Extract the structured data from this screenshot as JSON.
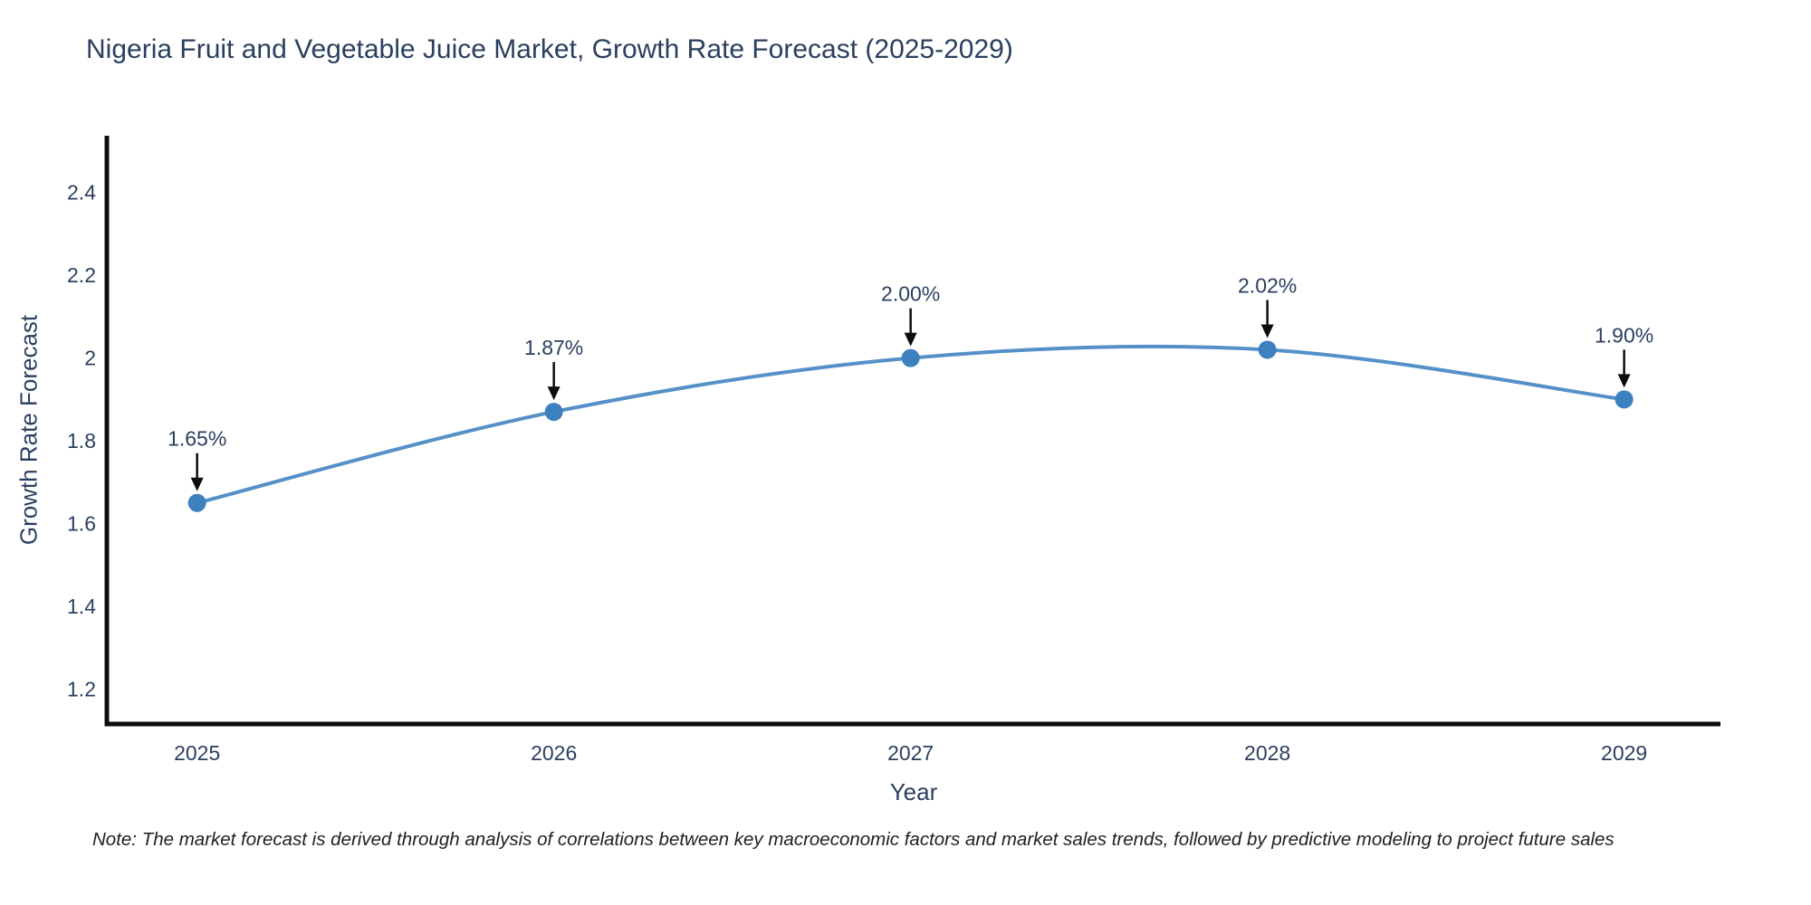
{
  "chart_data": {
    "type": "line",
    "title": "Nigeria Fruit and Vegetable Juice Market, Growth Rate Forecast (2025-2029)",
    "xlabel": "Year",
    "ylabel": "Growth Rate Forecast",
    "x": [
      2025,
      2026,
      2027,
      2028,
      2029
    ],
    "values": [
      1.65,
      1.87,
      2.0,
      2.02,
      1.9
    ],
    "point_labels": [
      "1.65%",
      "1.87%",
      "2.00%",
      "2.02%",
      "1.90%"
    ],
    "series_name": "Growth Rate Forecast",
    "x_tick_labels": [
      "2025",
      "2026",
      "2027",
      "2028",
      "2029"
    ],
    "y_ticks": [
      1.2,
      1.4,
      1.6,
      1.8,
      2.0,
      2.2,
      2.4
    ],
    "y_tick_labels": [
      "1.2",
      "1.4",
      "1.6",
      "1.8",
      "2",
      "2.2",
      "2.4"
    ],
    "xlim": [
      2024.747,
      2029.27
    ],
    "ylim": [
      1.116,
      2.537
    ],
    "line_shape": "spline",
    "grid": false,
    "legend_position": "none",
    "note": "Note: The market forecast is derived through analysis of correlations between key macroeconomic factors and market sales trends, followed by predictive modeling to project future sales",
    "colors": {
      "line": "#5590c8",
      "marker": "#3c80c0",
      "axis": "#0d0d0d",
      "tick_text": "#2a3f5f",
      "annotation_text": "#2a3f5f",
      "annotation_arrow": "#0d0d0d",
      "note_text": "#1f1f1f",
      "background": "#ffffff"
    }
  }
}
